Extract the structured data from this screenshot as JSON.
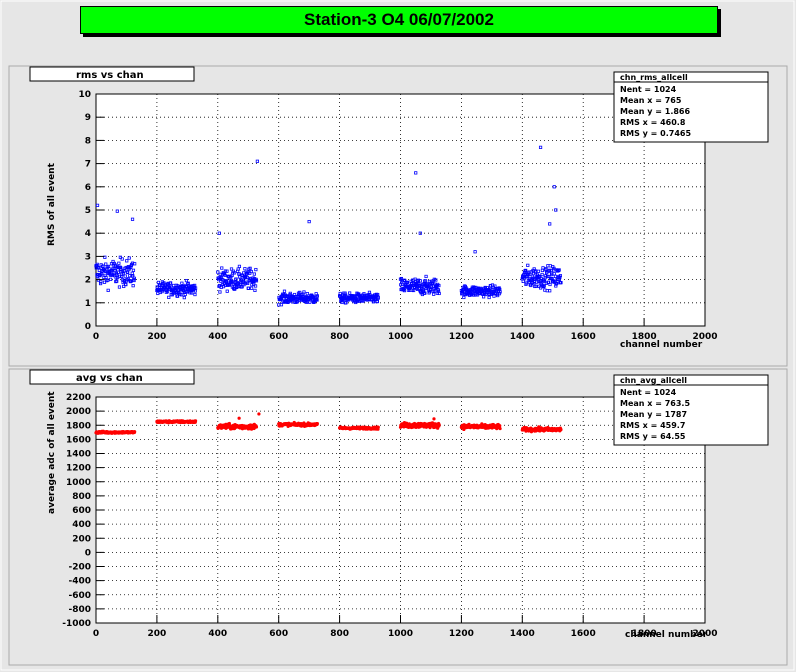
{
  "title": "Station-3 O4 06/07/2002",
  "colors": {
    "background": "#e6e6e6",
    "frame": "#e6e6e6",
    "title_fill": "#00ff00",
    "series_top": "#0000ff",
    "series_bottom": "#ff0000"
  },
  "chart_data": [
    {
      "type": "scatter",
      "title": "rms vs chan",
      "xlabel": "channel number",
      "ylabel": "RMS of all event",
      "xlim": [
        0,
        2000
      ],
      "ylim": [
        0,
        10
      ],
      "xticks": [
        "0",
        "200",
        "400",
        "600",
        "800",
        "1000",
        "1200",
        "1400",
        "1600",
        "1800",
        "2000"
      ],
      "yticks": [
        "0",
        "1",
        "2",
        "3",
        "4",
        "5",
        "6",
        "7",
        "8",
        "9",
        "10"
      ],
      "grid": true,
      "stats": {
        "name": "chn_rms_allcell",
        "lines": [
          {
            "label": "Nent = 1024",
            "value": ""
          },
          {
            "label": "Mean x = ",
            "value": "765"
          },
          {
            "label": "Mean y = ",
            "value": "1.866"
          },
          {
            "label": "RMS x = ",
            "value": "460.8"
          },
          {
            "label": "RMS y = ",
            "value": "0.7465"
          }
        ]
      },
      "series": [
        {
          "color": "#0000ff",
          "clusters": [
            {
              "x": [
                0,
                128
              ],
              "base": 2.3,
              "spread": 1.0
            },
            {
              "x": [
                200,
                328
              ],
              "base": 1.6,
              "spread": 0.5
            },
            {
              "x": [
                400,
                528
              ],
              "base": 2.0,
              "spread": 0.8
            },
            {
              "x": [
                600,
                728
              ],
              "base": 1.2,
              "spread": 0.4
            },
            {
              "x": [
                800,
                928
              ],
              "base": 1.2,
              "spread": 0.35
            },
            {
              "x": [
                1000,
                1128
              ],
              "base": 1.7,
              "spread": 0.6
            },
            {
              "x": [
                1200,
                1328
              ],
              "base": 1.5,
              "spread": 0.4
            },
            {
              "x": [
                1400,
                1528
              ],
              "base": 2.1,
              "spread": 0.8
            }
          ],
          "outliers": [
            [
              530,
              7.1
            ],
            [
              1460,
              7.7
            ],
            [
              1050,
              6.6
            ],
            [
              1505,
              6.0
            ],
            [
              700,
              4.5
            ],
            [
              5,
              5.2
            ],
            [
              70,
              4.95
            ],
            [
              1510,
              5.0
            ],
            [
              120,
              4.6
            ],
            [
              1490,
              4.4
            ],
            [
              1065,
              4.0
            ],
            [
              405,
              4.0
            ],
            [
              1245,
              3.2
            ]
          ]
        }
      ]
    },
    {
      "type": "scatter",
      "title": "avg vs chan",
      "xlabel": "channel number",
      "ylabel": "average adc of all event",
      "xlim": [
        0,
        2000
      ],
      "ylim": [
        -1000,
        2200
      ],
      "xticks": [
        "0",
        "200",
        "400",
        "600",
        "800",
        "1000",
        "1200",
        "1400",
        "1600",
        "1800",
        "2000"
      ],
      "yticks": [
        "-1000",
        "-800",
        "-600",
        "-400",
        "-200",
        "0",
        "200",
        "400",
        "600",
        "800",
        "1000",
        "1200",
        "1400",
        "1600",
        "1800",
        "2000",
        "2200"
      ],
      "grid": true,
      "stats": {
        "name": "chn_avg_allcell",
        "lines": [
          {
            "label": "Nent = 1024",
            "value": ""
          },
          {
            "label": "Mean x = ",
            "value": "763.5"
          },
          {
            "label": "Mean y = ",
            "value": "1787"
          },
          {
            "label": "RMS x = ",
            "value": "459.7"
          },
          {
            "label": "RMS y = ",
            "value": "64.55"
          }
        ]
      },
      "series": [
        {
          "color": "#ff0000",
          "clusters": [
            {
              "x": [
                0,
                128
              ],
              "base": 1700,
              "spread": 25
            },
            {
              "x": [
                200,
                328
              ],
              "base": 1850,
              "spread": 25
            },
            {
              "x": [
                400,
                528
              ],
              "base": 1780,
              "spread": 60
            },
            {
              "x": [
                600,
                728
              ],
              "base": 1810,
              "spread": 35
            },
            {
              "x": [
                800,
                928
              ],
              "base": 1760,
              "spread": 25
            },
            {
              "x": [
                1000,
                1128
              ],
              "base": 1800,
              "spread": 60
            },
            {
              "x": [
                1200,
                1328
              ],
              "base": 1780,
              "spread": 55
            },
            {
              "x": [
                1400,
                1528
              ],
              "base": 1740,
              "spread": 45
            }
          ],
          "outliers": [
            [
              535,
              1960
            ],
            [
              470,
              1900
            ],
            [
              1110,
              1890
            ]
          ]
        }
      ]
    }
  ]
}
